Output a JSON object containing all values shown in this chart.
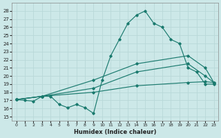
{
  "xlabel": "Humidex (Indice chaleur)",
  "bg_color": "#cce8e8",
  "grid_color": "#b8d8d8",
  "line_color": "#1a7a6e",
  "xlim": [
    -0.5,
    23.5
  ],
  "ylim": [
    14.5,
    29.0
  ],
  "yticks": [
    15,
    16,
    17,
    18,
    19,
    20,
    21,
    22,
    23,
    24,
    25,
    26,
    27,
    28
  ],
  "xticks": [
    0,
    1,
    2,
    3,
    4,
    5,
    6,
    7,
    8,
    9,
    10,
    11,
    12,
    13,
    14,
    15,
    16,
    17,
    18,
    19,
    20,
    21,
    22,
    23
  ],
  "line1_x": [
    0,
    1,
    2,
    3,
    4,
    5,
    6,
    7,
    8,
    9,
    10,
    11,
    12,
    13,
    14,
    15,
    16,
    17,
    18,
    19,
    20,
    21,
    22,
    23
  ],
  "line1_y": [
    17.1,
    17.0,
    16.9,
    17.5,
    17.5,
    16.5,
    16.1,
    16.5,
    16.1,
    15.4,
    19.5,
    22.5,
    24.5,
    26.5,
    27.5,
    28.0,
    26.5,
    26.0,
    24.5,
    24.0,
    21.0,
    20.5,
    19.0,
    19.0
  ],
  "line2_x": [
    0,
    3,
    9,
    14,
    20,
    22,
    23
  ],
  "line2_y": [
    17.1,
    17.5,
    19.5,
    21.5,
    22.5,
    21.0,
    19.2
  ],
  "line3_x": [
    0,
    3,
    9,
    14,
    20,
    22,
    23
  ],
  "line3_y": [
    17.1,
    17.5,
    18.5,
    20.5,
    21.5,
    20.0,
    19.2
  ],
  "line4_x": [
    0,
    3,
    9,
    14,
    20,
    22,
    23
  ],
  "line4_y": [
    17.1,
    17.5,
    18.0,
    18.8,
    19.2,
    19.3,
    19.2
  ]
}
